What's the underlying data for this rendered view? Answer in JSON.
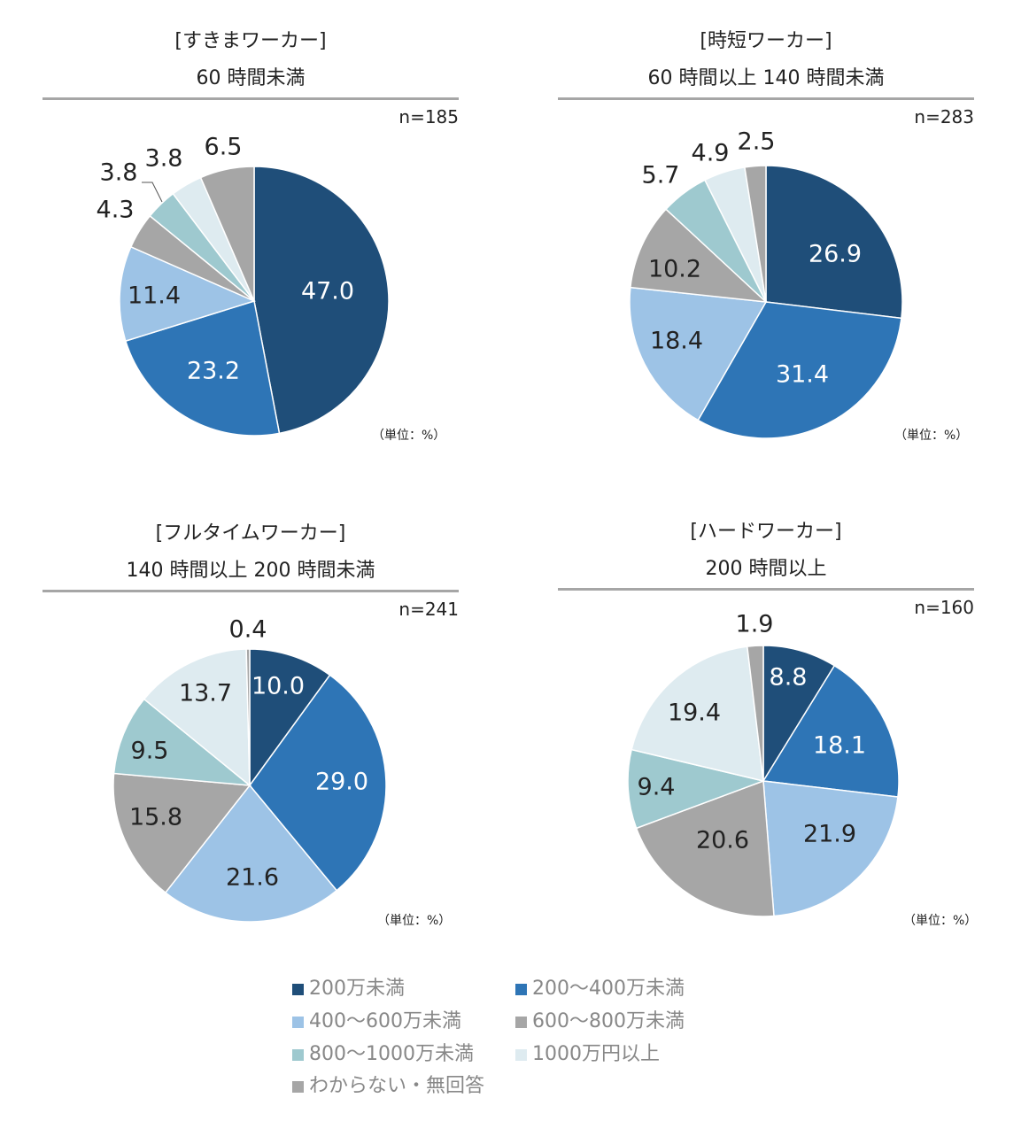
{
  "chart_data": [
    {
      "type": "pie",
      "title": "[すきまワーカー]",
      "subtitle": "60 時間未満",
      "n_label": "n=185",
      "unit_label": "（単位：%）",
      "values": [
        47.0,
        23.2,
        11.4,
        4.3,
        3.8,
        3.8,
        6.5
      ],
      "labels": [
        "47.0",
        "23.2",
        "11.4",
        "4.3",
        "3.8",
        "3.8",
        "6.5"
      ]
    },
    {
      "type": "pie",
      "title": "[時短ワーカー]",
      "subtitle": "60 時間以上 140 時間未満",
      "n_label": "n=283",
      "unit_label": "（単位：%）",
      "values": [
        26.9,
        31.4,
        18.4,
        10.2,
        5.7,
        4.9,
        2.5
      ],
      "labels": [
        "26.9",
        "31.4",
        "18.4",
        "10.2",
        "5.7",
        "4.9",
        "2.5"
      ]
    },
    {
      "type": "pie",
      "title": "[フルタイムワーカー]",
      "subtitle": "140 時間以上 200 時間未満",
      "n_label": "n=241",
      "unit_label": "（単位：%）",
      "values": [
        10.0,
        29.0,
        21.6,
        15.8,
        9.5,
        13.7,
        0.4
      ],
      "labels": [
        "10.0",
        "29.0",
        "21.6",
        "15.8",
        "9.5",
        "13.7",
        "0.4"
      ]
    },
    {
      "type": "pie",
      "title": "[ハードワーカー]",
      "subtitle": "200 時間以上",
      "n_label": "n=160",
      "unit_label": "（単位：%）",
      "values": [
        8.8,
        18.1,
        21.9,
        20.6,
        9.4,
        19.4,
        1.9
      ],
      "labels": [
        "8.8",
        "18.1",
        "21.9",
        "20.6",
        "9.4",
        "19.4",
        "1.9"
      ]
    }
  ],
  "legend": [
    {
      "label": "200万未満",
      "color": "#1f4e79"
    },
    {
      "label": "200～400万未満",
      "color": "#2e75b6"
    },
    {
      "label": "400～600万未満",
      "color": "#9dc3e6"
    },
    {
      "label": "600～800万未満",
      "color": "#a6a6a6"
    },
    {
      "label": "800～1000万未満",
      "color": "#9ec9cf"
    },
    {
      "label": "1000万円以上",
      "color": "#deebf0"
    },
    {
      "label": "わからない・無回答",
      "color": "#a6a6a6"
    }
  ]
}
